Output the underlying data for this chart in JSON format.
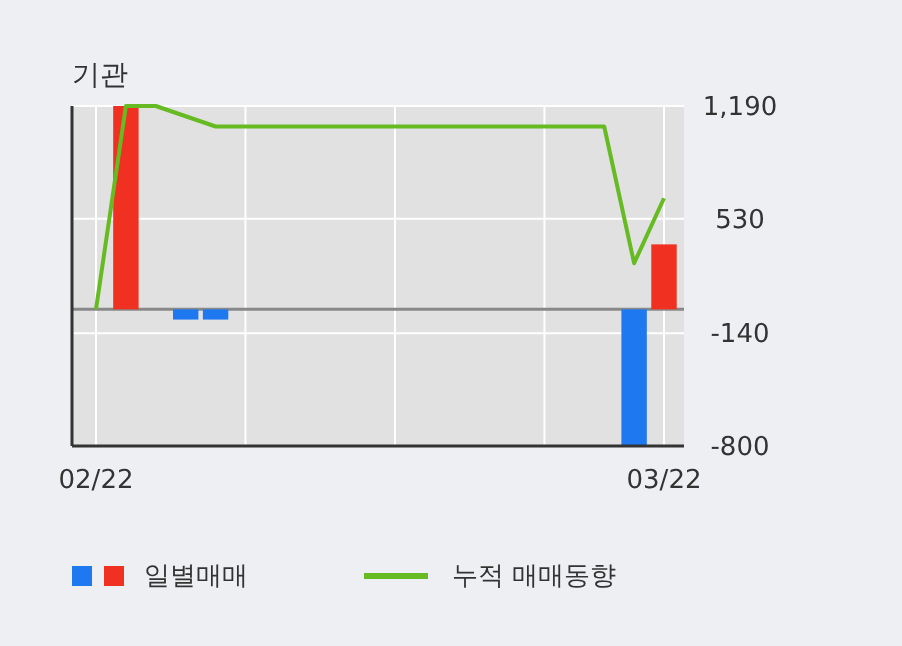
{
  "chart_data": {
    "type": "bar",
    "title": "기관",
    "categories": [
      "02/22",
      null,
      null,
      null,
      null,
      null,
      null,
      null,
      null,
      null,
      null,
      null,
      null,
      null,
      null,
      null,
      null,
      null,
      null,
      "03/22"
    ],
    "series": [
      {
        "name": "일별매매",
        "colors": [
          "#f03020",
          "#f03020",
          "#f03020",
          "#1e78f0",
          "#1e78f0",
          "#f03020",
          "#f03020",
          "#f03020",
          "#f03020",
          "#f03020",
          "#f03020",
          "#f03020",
          "#f03020",
          "#f03020",
          "#f03020",
          "#f03020",
          "#f03020",
          "#f03020",
          "#1e78f0",
          "#f03020"
        ],
        "values": [
          0,
          1190,
          0,
          -60,
          -60,
          0,
          0,
          0,
          0,
          0,
          0,
          0,
          0,
          0,
          0,
          0,
          0,
          0,
          -800,
          380
        ]
      },
      {
        "name": "누적 매매동향",
        "type": "line",
        "color": "#66bb22",
        "values": [
          0,
          1190,
          1190,
          1130,
          1070,
          1070,
          1070,
          1070,
          1070,
          1070,
          1070,
          1070,
          1070,
          1070,
          1070,
          1070,
          1070,
          1070,
          270,
          650
        ]
      }
    ],
    "ylim": [
      -800,
      1190
    ],
    "yticks": [
      {
        "value": 1190,
        "label": "1,190"
      },
      530,
      -140,
      -800
    ],
    "grid": true,
    "legend": "bottom"
  }
}
